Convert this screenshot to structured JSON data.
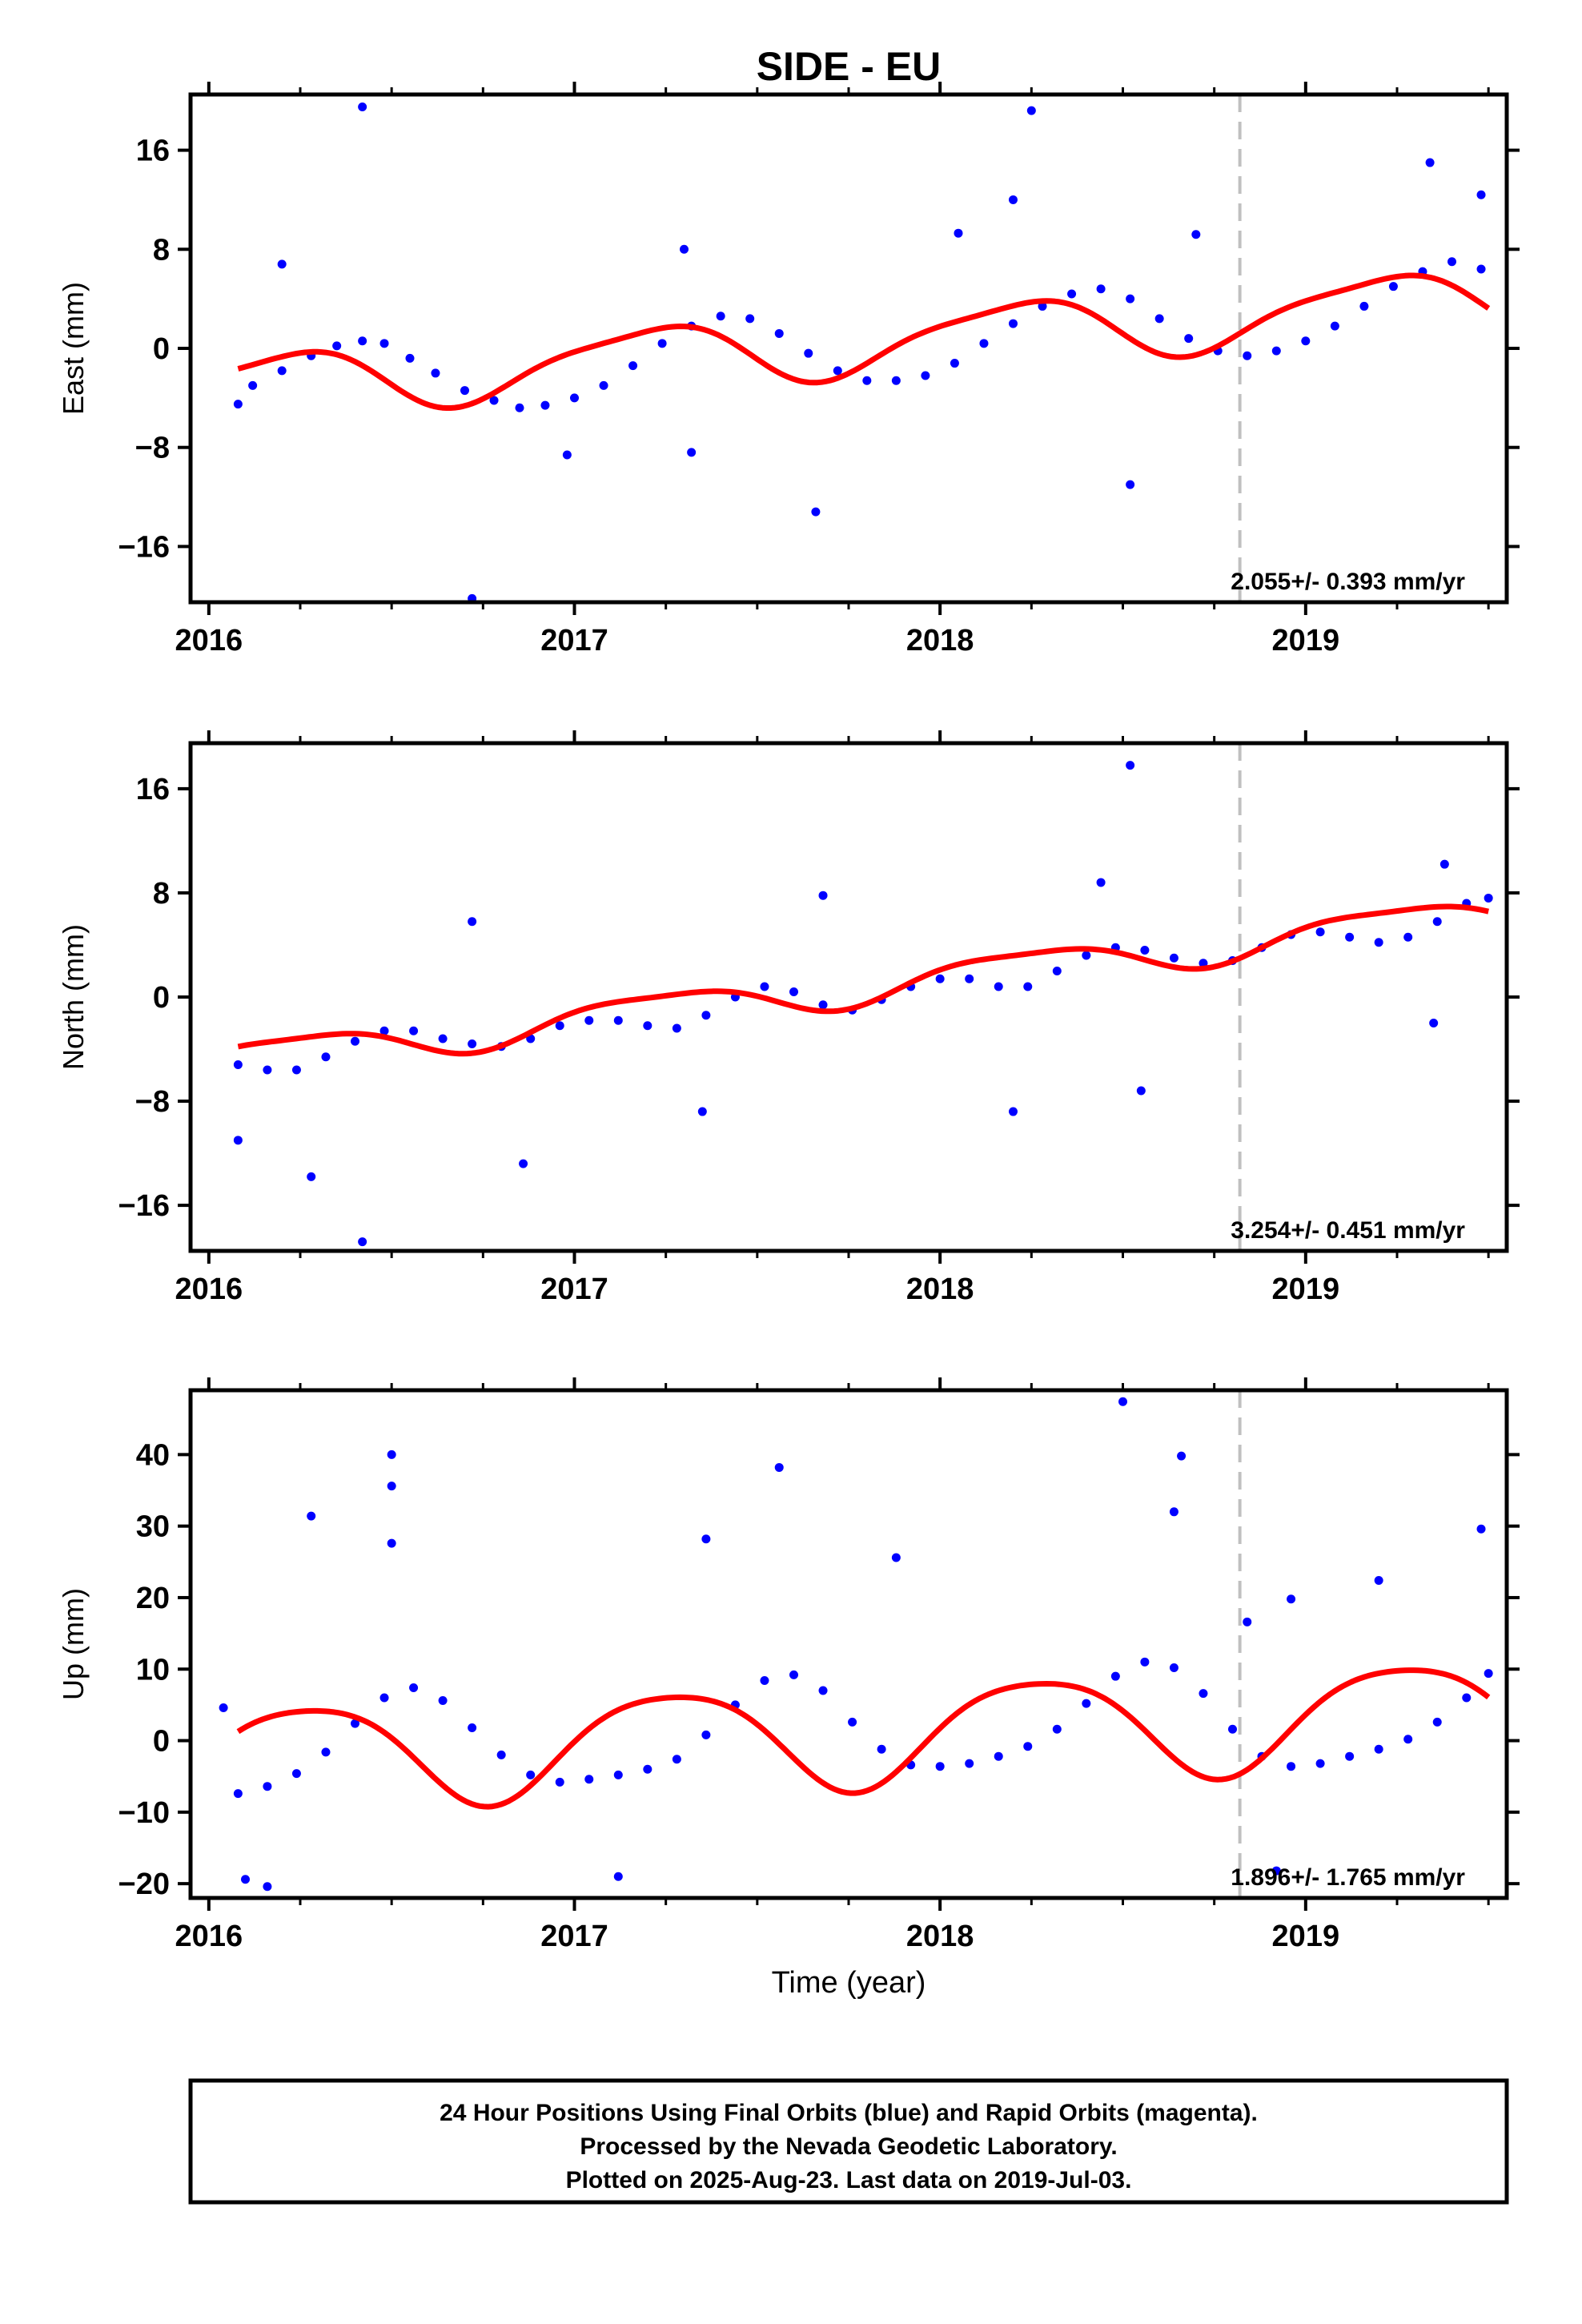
{
  "chart_data": {
    "type": "scatter",
    "title": "SIDE - EU",
    "xlabel": "Time (year)",
    "xlim": [
      2015.95,
      2019.55
    ],
    "x_ticks": [
      "2016",
      "2017",
      "2018",
      "2019"
    ],
    "x_tick_values": [
      2016,
      2017,
      2018,
      2019
    ],
    "event_marker_x": 2018.82,
    "colors": {
      "points": "#0000ff",
      "fit": "#ff0000",
      "marker": "#c0c0c0",
      "frame": "#000000"
    },
    "panels": [
      {
        "name": "East",
        "ylabel": "East (mm)",
        "ylim": [
          -20.5,
          20.5
        ],
        "y_ticks": [
          "16",
          "8",
          "0",
          "−8",
          "−16"
        ],
        "y_tick_values": [
          16,
          8,
          0,
          -8,
          -16
        ],
        "rate_text": "2.055+/- 0.393 mm/yr",
        "trend": {
          "t0": 2017.8,
          "offset": 0.5,
          "rate": 2.055,
          "sin": 1.5,
          "cos": -2.0,
          "sin2": 0.5,
          "cos2": 0.3
        },
        "points": [
          [
            2016.08,
            -4.5
          ],
          [
            2016.12,
            -3.0
          ],
          [
            2016.2,
            -1.8
          ],
          [
            2016.28,
            -0.6
          ],
          [
            2016.35,
            0.2
          ],
          [
            2016.42,
            0.6
          ],
          [
            2016.48,
            0.4
          ],
          [
            2016.55,
            -0.8
          ],
          [
            2016.62,
            -2.0
          ],
          [
            2016.7,
            -3.4
          ],
          [
            2016.78,
            -4.2
          ],
          [
            2016.85,
            -4.8
          ],
          [
            2016.92,
            -4.6
          ],
          [
            2017.0,
            -4.0
          ],
          [
            2017.08,
            -3.0
          ],
          [
            2017.16,
            -1.4
          ],
          [
            2017.24,
            0.4
          ],
          [
            2017.32,
            1.8
          ],
          [
            2017.4,
            2.6
          ],
          [
            2017.48,
            2.4
          ],
          [
            2017.56,
            1.2
          ],
          [
            2017.64,
            -0.4
          ],
          [
            2017.72,
            -1.8
          ],
          [
            2017.8,
            -2.6
          ],
          [
            2017.88,
            -2.6
          ],
          [
            2017.96,
            -2.2
          ],
          [
            2018.04,
            -1.2
          ],
          [
            2018.12,
            0.4
          ],
          [
            2018.2,
            2.0
          ],
          [
            2018.28,
            3.4
          ],
          [
            2018.36,
            4.4
          ],
          [
            2018.44,
            4.8
          ],
          [
            2018.52,
            4.0
          ],
          [
            2018.6,
            2.4
          ],
          [
            2018.68,
            0.8
          ],
          [
            2018.76,
            -0.2
          ],
          [
            2018.84,
            -0.6
          ],
          [
            2018.92,
            -0.2
          ],
          [
            2019.0,
            0.6
          ],
          [
            2019.08,
            1.8
          ],
          [
            2019.16,
            3.4
          ],
          [
            2019.24,
            5.0
          ],
          [
            2019.32,
            6.2
          ],
          [
            2019.4,
            7.0
          ],
          [
            2019.48,
            6.4
          ],
          [
            2016.42,
            19.5
          ],
          [
            2018.25,
            19.2
          ],
          [
            2016.72,
            -20.2
          ],
          [
            2017.66,
            -13.2
          ],
          [
            2018.52,
            -11.0
          ],
          [
            2016.2,
            6.8
          ],
          [
            2017.3,
            8.0
          ],
          [
            2018.05,
            9.3
          ],
          [
            2018.2,
            12.0
          ],
          [
            2019.34,
            15.0
          ],
          [
            2019.48,
            12.4
          ],
          [
            2017.32,
            -8.4
          ],
          [
            2016.98,
            -8.6
          ],
          [
            2018.7,
            9.2
          ]
        ]
      },
      {
        "name": "North",
        "ylabel": "North (mm)",
        "ylim": [
          -19.5,
          19.5
        ],
        "y_ticks": [
          "16",
          "8",
          "0",
          "−8",
          "−16"
        ],
        "y_tick_values": [
          16,
          8,
          0,
          -8,
          -16
        ],
        "rate_text": "3.254+/- 0.451 mm/yr",
        "trend": {
          "t0": 2017.8,
          "offset": 0.9,
          "rate": 3.254,
          "sin": 0.6,
          "cos": -1.2,
          "sin2": 0.3,
          "cos2": -0.2
        },
        "points": [
          [
            2016.08,
            -5.2
          ],
          [
            2016.16,
            -5.6
          ],
          [
            2016.24,
            -5.6
          ],
          [
            2016.32,
            -4.6
          ],
          [
            2016.4,
            -3.4
          ],
          [
            2016.48,
            -2.6
          ],
          [
            2016.56,
            -2.6
          ],
          [
            2016.64,
            -3.2
          ],
          [
            2016.72,
            -3.6
          ],
          [
            2016.8,
            -3.8
          ],
          [
            2016.88,
            -3.2
          ],
          [
            2016.96,
            -2.2
          ],
          [
            2017.04,
            -1.8
          ],
          [
            2017.12,
            -1.8
          ],
          [
            2017.2,
            -2.2
          ],
          [
            2017.28,
            -2.4
          ],
          [
            2017.36,
            -1.4
          ],
          [
            2017.44,
            0.0
          ],
          [
            2017.52,
            0.8
          ],
          [
            2017.6,
            0.4
          ],
          [
            2017.68,
            -0.6
          ],
          [
            2017.76,
            -1.0
          ],
          [
            2017.84,
            -0.2
          ],
          [
            2017.92,
            0.8
          ],
          [
            2018.0,
            1.4
          ],
          [
            2018.08,
            1.4
          ],
          [
            2018.16,
            0.8
          ],
          [
            2018.24,
            0.8
          ],
          [
            2018.32,
            2.0
          ],
          [
            2018.4,
            3.2
          ],
          [
            2018.48,
            3.8
          ],
          [
            2018.56,
            3.6
          ],
          [
            2018.64,
            3.0
          ],
          [
            2018.72,
            2.6
          ],
          [
            2018.8,
            2.8
          ],
          [
            2018.88,
            3.8
          ],
          [
            2018.96,
            4.8
          ],
          [
            2019.04,
            5.0
          ],
          [
            2019.12,
            4.6
          ],
          [
            2019.2,
            4.2
          ],
          [
            2019.28,
            4.6
          ],
          [
            2019.36,
            5.8
          ],
          [
            2019.44,
            7.2
          ],
          [
            2019.5,
            7.6
          ],
          [
            2018.52,
            17.8
          ],
          [
            2016.42,
            -18.8
          ],
          [
            2016.28,
            -13.8
          ],
          [
            2016.86,
            -12.8
          ],
          [
            2016.08,
            -11.0
          ],
          [
            2016.72,
            5.8
          ],
          [
            2017.68,
            7.8
          ],
          [
            2019.35,
            -2.0
          ],
          [
            2019.38,
            10.2
          ],
          [
            2018.2,
            -8.8
          ],
          [
            2018.55,
            -7.2
          ],
          [
            2017.35,
            -8.8
          ],
          [
            2018.44,
            8.8
          ]
        ]
      },
      {
        "name": "Up",
        "ylabel": "Up (mm)",
        "ylim": [
          -22,
          49
        ],
        "y_ticks": [
          "40",
          "30",
          "20",
          "10",
          "0",
          "−10",
          "−20"
        ],
        "y_tick_values": [
          40,
          30,
          20,
          10,
          0,
          -10,
          -20
        ],
        "rate_text": "1.896+/- 1.765 mm/yr",
        "trend": {
          "t0": 2017.8,
          "offset": 1.0,
          "rate": 1.896,
          "sin": 1.5,
          "cos": -7.0,
          "sin2": 0.5,
          "cos2": -1.0
        },
        "points": [
          [
            2016.08,
            -7.4
          ],
          [
            2016.16,
            -6.4
          ],
          [
            2016.24,
            -4.6
          ],
          [
            2016.32,
            -1.6
          ],
          [
            2016.4,
            2.4
          ],
          [
            2016.48,
            6.0
          ],
          [
            2016.56,
            7.4
          ],
          [
            2016.64,
            5.6
          ],
          [
            2016.72,
            1.8
          ],
          [
            2016.8,
            -2.0
          ],
          [
            2016.88,
            -4.8
          ],
          [
            2016.96,
            -5.8
          ],
          [
            2017.04,
            -5.4
          ],
          [
            2017.12,
            -4.8
          ],
          [
            2017.2,
            -4.0
          ],
          [
            2017.28,
            -2.6
          ],
          [
            2017.36,
            0.8
          ],
          [
            2017.44,
            5.0
          ],
          [
            2017.52,
            8.4
          ],
          [
            2017.6,
            9.2
          ],
          [
            2017.68,
            7.0
          ],
          [
            2017.76,
            2.6
          ],
          [
            2017.84,
            -1.2
          ],
          [
            2017.92,
            -3.4
          ],
          [
            2018.0,
            -3.6
          ],
          [
            2018.08,
            -3.2
          ],
          [
            2018.16,
            -2.2
          ],
          [
            2018.24,
            -0.8
          ],
          [
            2018.32,
            1.6
          ],
          [
            2018.4,
            5.2
          ],
          [
            2018.48,
            9.0
          ],
          [
            2018.56,
            11.0
          ],
          [
            2018.64,
            10.2
          ],
          [
            2018.72,
            6.6
          ],
          [
            2018.8,
            1.6
          ],
          [
            2018.88,
            -2.2
          ],
          [
            2018.96,
            -3.6
          ],
          [
            2019.04,
            -3.2
          ],
          [
            2019.12,
            -2.2
          ],
          [
            2019.2,
            -1.2
          ],
          [
            2019.28,
            0.2
          ],
          [
            2019.36,
            2.6
          ],
          [
            2019.44,
            6.0
          ],
          [
            2019.5,
            9.4
          ],
          [
            2018.5,
            47.4
          ],
          [
            2016.5,
            40.0
          ],
          [
            2016.5,
            35.6
          ],
          [
            2016.5,
            27.6
          ],
          [
            2017.56,
            38.2
          ],
          [
            2018.66,
            39.8
          ],
          [
            2016.28,
            31.4
          ],
          [
            2017.36,
            28.2
          ],
          [
            2017.88,
            25.6
          ],
          [
            2018.64,
            32.0
          ],
          [
            2019.48,
            29.6
          ],
          [
            2016.1,
            -19.4
          ],
          [
            2017.12,
            -19.0
          ],
          [
            2016.16,
            -20.4
          ],
          [
            2018.92,
            -18.2
          ],
          [
            2018.96,
            19.8
          ],
          [
            2019.2,
            22.4
          ],
          [
            2018.84,
            16.6
          ],
          [
            2016.04,
            4.6
          ]
        ]
      }
    ]
  },
  "footer": {
    "line1": "24 Hour Positions Using Final Orbits (blue) and Rapid Orbits (magenta).",
    "line2": "Processed by the Nevada Geodetic Laboratory.",
    "line3": "Plotted on 2025-Aug-23. Last data on 2019-Jul-03."
  }
}
